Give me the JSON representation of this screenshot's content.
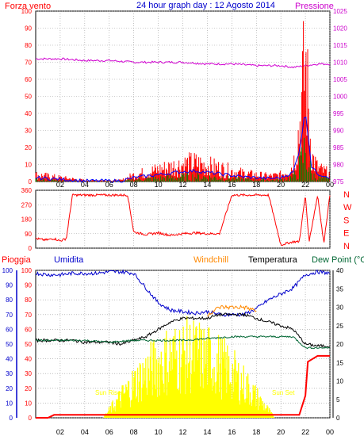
{
  "header": {
    "left_label": "Forza vento",
    "title": "24 hour graph day : 12 Agosto 2014",
    "right_label": "Pressione"
  },
  "wind_panel": {
    "left_ticks": [
      0,
      10,
      20,
      30,
      40,
      50,
      60,
      70,
      80,
      90,
      100
    ],
    "right_ticks": [
      975,
      980,
      985,
      990,
      995,
      1000,
      1005,
      1010,
      1015,
      1020,
      1025
    ]
  },
  "direction_panel": {
    "left_ticks": [
      0,
      90,
      180,
      270,
      360
    ],
    "right_labels": [
      "N",
      "W",
      "S",
      "E",
      "N"
    ]
  },
  "bottom_panel": {
    "labels": {
      "rain": "Pioggia",
      "humidity": "Umidita",
      "windchill": "Windchill",
      "temperature": "Temperatura",
      "dewpoint": "Dew Point (°C"
    },
    "left_ticks": [
      0,
      10,
      20,
      30,
      40,
      50,
      60,
      70,
      80,
      90,
      100
    ],
    "right_ticks": [
      0,
      5,
      10,
      15,
      20,
      25,
      30,
      35,
      40
    ],
    "sun_rise": "Sun Rise",
    "sun_set": "Sun Set"
  },
  "x_ticks": [
    "02",
    "04",
    "06",
    "08",
    "10",
    "12",
    "14",
    "16",
    "18",
    "20",
    "22",
    "00"
  ],
  "colors": {
    "wind": "#ff0000",
    "gust": "#008000",
    "avg": "#0000ff",
    "pressure": "#d000d0",
    "direction": "#ff0000",
    "humidity": "#0000cc",
    "temperature": "#000000",
    "dewpoint": "#006633",
    "windchill": "#ff8800",
    "rain": "#ff0000",
    "solar": "#ffff00",
    "header_left": "#ff0000",
    "header_title": "#0000cc",
    "header_right": "#cc00cc",
    "labels_left": "#ff0000",
    "axis_blue": "#0000cc"
  },
  "chart_data": [
    {
      "type": "line",
      "title": "24 hour graph day : 12 Agosto 2014",
      "x_unit": "hour",
      "ylim_left": [
        0,
        100
      ],
      "ylim_right": [
        975,
        1025
      ],
      "series": [
        {
          "name": "Forza vento",
          "axis": "left",
          "x": [
            0,
            1,
            2,
            3,
            4,
            5,
            6,
            7,
            8,
            9,
            10,
            11,
            12,
            13,
            14,
            15,
            16,
            17,
            18,
            19,
            20,
            21,
            21.5,
            22,
            22.5,
            23,
            24
          ],
          "values": [
            5,
            4,
            3,
            2,
            1,
            1,
            1,
            1,
            5,
            7,
            9,
            11,
            13,
            14,
            12,
            10,
            8,
            6,
            5,
            4,
            5,
            12,
            40,
            92,
            20,
            10,
            6
          ]
        },
        {
          "name": "Pressione",
          "axis": "right",
          "x": [
            0,
            2,
            4,
            6,
            8,
            10,
            12,
            14,
            16,
            18,
            20,
            21,
            22,
            23,
            24
          ],
          "values": [
            1011,
            1011,
            1010.5,
            1010.5,
            1010,
            1010,
            1010,
            1009.5,
            1009.5,
            1009,
            1009,
            1008.5,
            1009,
            1009.5,
            1009.5
          ]
        }
      ]
    },
    {
      "type": "line",
      "ylim": [
        0,
        360
      ],
      "series": [
        {
          "name": "Wind direction",
          "x": [
            0,
            0.8,
            1.5,
            2,
            2.5,
            3,
            4,
            5,
            6,
            7,
            7.5,
            8,
            9,
            10,
            11,
            12,
            13,
            14,
            15,
            16,
            17,
            18,
            19,
            20,
            21,
            21.5,
            22,
            22.3,
            23,
            23.5,
            24
          ],
          "values": [
            60,
            50,
            60,
            45,
            60,
            330,
            330,
            330,
            330,
            330,
            330,
            100,
            85,
            95,
            80,
            90,
            95,
            90,
            90,
            330,
            330,
            330,
            330,
            20,
            40,
            40,
            330,
            40,
            330,
            30,
            330
          ]
        }
      ]
    },
    {
      "type": "line",
      "ylim_left": [
        0,
        100
      ],
      "ylim_right": [
        0,
        40
      ],
      "series": [
        {
          "name": "Umidita",
          "axis": "left",
          "x": [
            0,
            1,
            2,
            3,
            4,
            5,
            6,
            7,
            8,
            9,
            10,
            11,
            12,
            13,
            14,
            15,
            16,
            17,
            18,
            19,
            20,
            21,
            22,
            23,
            24
          ],
          "values": [
            98,
            97,
            97,
            98,
            98,
            98,
            99,
            99,
            98,
            88,
            78,
            73,
            72,
            71,
            72,
            70,
            70,
            70,
            74,
            80,
            84,
            88,
            97,
            99,
            98
          ]
        },
        {
          "name": "Temperatura",
          "axis": "right",
          "x": [
            0,
            1,
            2,
            3,
            4,
            5,
            6,
            7,
            8,
            9,
            10,
            11,
            12,
            13,
            14,
            15,
            16,
            17,
            18,
            19,
            20,
            21,
            22,
            23,
            24
          ],
          "values": [
            21,
            21,
            21,
            21,
            20.5,
            20.5,
            20.5,
            20,
            21,
            22,
            24,
            26,
            27,
            27,
            27,
            28,
            28,
            28,
            27,
            26,
            25,
            24,
            20,
            19.5,
            19.5
          ]
        },
        {
          "name": "Dew Point (°C",
          "axis": "right",
          "x": [
            0,
            2,
            4,
            6,
            8,
            10,
            12,
            14,
            16,
            18,
            20,
            21,
            22,
            23,
            24
          ],
          "values": [
            21,
            21,
            21,
            20.5,
            21,
            21,
            21,
            21.5,
            22,
            22,
            22,
            22,
            19,
            19,
            19
          ]
        },
        {
          "name": "Windchill",
          "axis": "right",
          "x": [
            14,
            15,
            16,
            17,
            18
          ],
          "values": [
            28,
            30,
            30,
            30,
            29
          ]
        },
        {
          "name": "Pioggia",
          "axis": "left",
          "x": [
            0,
            1,
            1.5,
            21.5,
            22,
            22.2,
            23,
            24
          ],
          "values": [
            0,
            0,
            2,
            2,
            15,
            38,
            42,
            42
          ]
        }
      ]
    }
  ]
}
